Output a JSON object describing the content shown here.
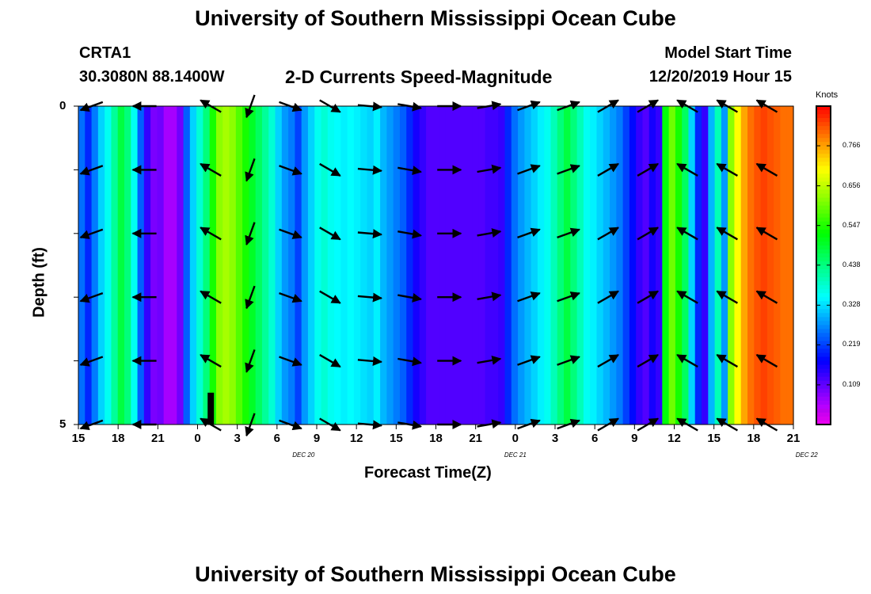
{
  "chart_data": {
    "type": "heatmap",
    "title": "University of Southern Mississippi Ocean Cube",
    "footer_title": "University of Southern Mississippi Ocean Cube",
    "station": "CRTA1",
    "location": "30.3080N 88.1400W",
    "subtitle": "2-D Currents Speed-Magnitude",
    "model_start_label": "Model Start Time",
    "model_start_value": "12/20/2019 Hour 15",
    "xlabel": "Forecast Time(Z)",
    "ylabel": "Depth (ft)",
    "colorbar_label": "Knots",
    "x_tick_labels": [
      "15",
      "18",
      "21",
      "0",
      "3",
      "6",
      "9",
      "12",
      "15",
      "18",
      "21",
      "0",
      "3",
      "6",
      "9",
      "12",
      "15",
      "18",
      "21"
    ],
    "date_labels": [
      {
        "text": "DEC 20",
        "at_hour": 17
      },
      {
        "text": "DEC 21",
        "at_hour": 33
      },
      {
        "text": "DEC 22",
        "at_hour": 55
      }
    ],
    "y_tick_labels": [
      "0",
      "5"
    ],
    "ylim": [
      0,
      5
    ],
    "xlim_hours": [
      0,
      54
    ],
    "colorbar_ticks": [
      "0.109",
      "0.219",
      "0.328",
      "0.438",
      "0.547",
      "0.656",
      "0.766"
    ],
    "colorbar_range": [
      0,
      0.875
    ],
    "speed_knots": [
      0.25,
      0.2,
      0.26,
      0.32,
      0.36,
      0.42,
      0.48,
      0.44,
      0.36,
      0.24,
      0.14,
      0.09,
      0.1,
      0.06,
      0.06,
      0.1,
      0.24,
      0.32,
      0.38,
      0.44,
      0.54,
      0.62,
      0.64,
      0.62,
      0.58,
      0.54,
      0.5,
      0.46,
      0.42,
      0.38,
      0.32,
      0.28,
      0.26,
      0.22,
      0.28,
      0.32,
      0.36,
      0.38,
      0.36,
      0.35,
      0.34,
      0.35,
      0.34,
      0.33,
      0.32,
      0.34,
      0.3,
      0.28,
      0.26,
      0.24,
      0.2,
      0.16,
      0.14,
      0.12,
      0.12,
      0.12,
      0.12,
      0.12,
      0.12,
      0.12,
      0.12,
      0.12,
      0.13,
      0.13,
      0.14,
      0.2,
      0.25,
      0.28,
      0.3,
      0.32,
      0.34,
      0.36,
      0.4,
      0.44,
      0.48,
      0.44,
      0.4,
      0.36,
      0.34,
      0.32,
      0.3,
      0.28,
      0.26,
      0.22,
      0.18,
      0.14,
      0.12,
      0.16,
      0.14,
      0.52,
      0.6,
      0.54,
      0.46,
      0.32,
      0.2,
      0.14,
      0.3,
      0.4,
      0.28,
      0.62,
      0.7,
      0.76,
      0.8,
      0.82,
      0.83,
      0.82,
      0.81,
      0.8,
      0.8
    ],
    "vector_times_hours": [
      1,
      5,
      10,
      13,
      16,
      19,
      22,
      25,
      28,
      31,
      34,
      37,
      40,
      43,
      46,
      49,
      52
    ],
    "vector_depths_ft": [
      0,
      1,
      2,
      3,
      4,
      5
    ],
    "vector_directions_deg": [
      250,
      270,
      300,
      200,
      110,
      120,
      95,
      100,
      90,
      80,
      70,
      70,
      60,
      60,
      300,
      300,
      300
    ],
    "deep_bar_hour": 10
  }
}
